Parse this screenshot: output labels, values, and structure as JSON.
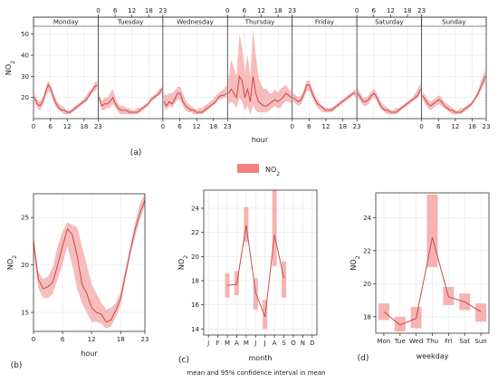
{
  "legend": {
    "label": "NO",
    "sub": "2",
    "color": "#f28080"
  },
  "caption": "mean and 95% confidence interval in mean",
  "chart_data": [
    {
      "id": "a",
      "panel_label": "(a)",
      "type": "area",
      "xlabel": "hour",
      "ylabel": "NO2",
      "ylim": [
        10,
        58
      ],
      "yticks": [
        20,
        30,
        40,
        50
      ],
      "xticks": [
        0,
        6,
        12,
        18,
        23
      ],
      "days": [
        "Monday",
        "Tuesday",
        "Wednesday",
        "Thursday",
        "Friday",
        "Saturday",
        "Sunday"
      ],
      "series": [
        {
          "mean": [
            20,
            17,
            16,
            18,
            22,
            26,
            24,
            20,
            17,
            15,
            14,
            14,
            13,
            13,
            14,
            15,
            16,
            17,
            18,
            19,
            21,
            23,
            25,
            26
          ],
          "lower": [
            18,
            15,
            14,
            16,
            20,
            23,
            22,
            18,
            15,
            14,
            13,
            12,
            12,
            12,
            13,
            14,
            15,
            16,
            17,
            18,
            20,
            22,
            23,
            24
          ],
          "upper": [
            22,
            19,
            18,
            20,
            24,
            28,
            26,
            22,
            19,
            17,
            16,
            15,
            14,
            14,
            15,
            16,
            17,
            18,
            19,
            21,
            23,
            24,
            27,
            28
          ]
        },
        {
          "mean": [
            20,
            16,
            17,
            17,
            18,
            20,
            17,
            15,
            14,
            14,
            14,
            13,
            13,
            13,
            13,
            14,
            15,
            16,
            17,
            19,
            20,
            21,
            22,
            24
          ],
          "lower": [
            18,
            14,
            14,
            15,
            15,
            17,
            15,
            13,
            12,
            12,
            12,
            12,
            12,
            12,
            12,
            13,
            14,
            15,
            16,
            18,
            19,
            20,
            21,
            22
          ],
          "upper": [
            22,
            18,
            20,
            20,
            22,
            24,
            20,
            17,
            16,
            16,
            15,
            15,
            14,
            14,
            15,
            15,
            16,
            17,
            18,
            20,
            21,
            22,
            24,
            25
          ]
        },
        {
          "mean": [
            18,
            16,
            18,
            17,
            19,
            22,
            22,
            18,
            16,
            15,
            14,
            14,
            13,
            13,
            13,
            14,
            15,
            16,
            17,
            18,
            20,
            21,
            21,
            22
          ],
          "lower": [
            16,
            14,
            16,
            15,
            17,
            19,
            19,
            16,
            14,
            13,
            13,
            12,
            12,
            12,
            12,
            13,
            14,
            15,
            16,
            17,
            19,
            19,
            20,
            20
          ],
          "upper": [
            20,
            18,
            21,
            20,
            22,
            25,
            25,
            21,
            18,
            17,
            16,
            15,
            14,
            14,
            15,
            15,
            16,
            17,
            18,
            19,
            21,
            22,
            23,
            24
          ],
          "upper_extra": [
            22,
            21,
            22,
            22,
            23,
            25,
            25,
            22,
            19,
            17,
            16,
            15,
            14,
            15,
            15,
            16,
            17,
            18,
            19,
            21,
            22,
            23,
            24,
            26
          ]
        },
        {
          "mean": [
            22,
            24,
            22,
            20,
            30,
            28,
            20,
            24,
            18,
            30,
            22,
            18,
            17,
            16,
            16,
            17,
            18,
            19,
            18,
            19,
            20,
            22,
            21,
            20
          ],
          "lower": [
            17,
            18,
            17,
            15,
            20,
            18,
            14,
            16,
            12,
            16,
            14,
            13,
            13,
            13,
            13,
            14,
            15,
            16,
            15,
            15,
            17,
            18,
            18,
            17
          ],
          "upper": [
            28,
            38,
            34,
            30,
            50,
            44,
            32,
            40,
            30,
            52,
            40,
            30,
            26,
            24,
            24,
            22,
            22,
            24,
            22,
            24,
            25,
            26,
            24,
            23
          ]
        },
        {
          "mean": [
            20,
            19,
            18,
            19,
            22,
            26,
            26,
            22,
            19,
            17,
            16,
            15,
            14,
            14,
            14,
            15,
            16,
            17,
            18,
            19,
            20,
            21,
            22,
            22
          ],
          "lower": [
            18,
            17,
            16,
            17,
            20,
            23,
            23,
            20,
            17,
            15,
            14,
            13,
            13,
            13,
            13,
            14,
            15,
            16,
            17,
            18,
            19,
            20,
            21,
            20
          ],
          "upper": [
            22,
            21,
            20,
            21,
            24,
            28,
            28,
            24,
            21,
            19,
            17,
            16,
            15,
            15,
            15,
            16,
            17,
            18,
            19,
            20,
            21,
            22,
            23,
            24
          ]
        },
        {
          "mean": [
            22,
            20,
            18,
            18,
            19,
            21,
            22,
            20,
            17,
            15,
            14,
            14,
            13,
            13,
            13,
            14,
            15,
            16,
            17,
            18,
            19,
            20,
            21,
            24
          ],
          "lower": [
            20,
            18,
            16,
            16,
            17,
            19,
            20,
            18,
            15,
            14,
            13,
            12,
            12,
            12,
            12,
            13,
            14,
            15,
            16,
            17,
            18,
            19,
            20,
            22
          ],
          "upper": [
            25,
            22,
            20,
            20,
            21,
            23,
            24,
            22,
            19,
            17,
            16,
            15,
            14,
            14,
            15,
            15,
            16,
            17,
            18,
            19,
            20,
            22,
            24,
            27
          ]
        },
        {
          "mean": [
            21,
            19,
            17,
            16,
            17,
            18,
            19,
            18,
            16,
            15,
            14,
            14,
            13,
            13,
            13,
            14,
            15,
            16,
            17,
            19,
            21,
            24,
            27,
            30
          ],
          "lower": [
            19,
            17,
            15,
            14,
            15,
            16,
            17,
            16,
            15,
            14,
            13,
            12,
            12,
            12,
            12,
            13,
            14,
            15,
            16,
            18,
            20,
            22,
            25,
            27
          ],
          "upper": [
            23,
            21,
            19,
            18,
            19,
            20,
            21,
            20,
            18,
            17,
            16,
            15,
            14,
            14,
            15,
            15,
            16,
            17,
            18,
            20,
            22,
            26,
            30,
            33
          ]
        }
      ]
    },
    {
      "id": "b",
      "panel_label": "(b)",
      "type": "area",
      "xlabel": "hour",
      "ylabel": "NO2",
      "xlim": [
        0,
        23
      ],
      "ylim": [
        13,
        27.5
      ],
      "xticks": [
        0,
        6,
        12,
        18,
        23
      ],
      "yticks": [
        15,
        20,
        25
      ],
      "x": [
        0,
        1,
        2,
        3,
        4,
        5,
        6,
        7,
        8,
        9,
        10,
        11,
        12,
        13,
        14,
        15,
        16,
        17,
        18,
        19,
        20,
        21,
        22,
        23
      ],
      "mean": [
        22.5,
        18.5,
        17.5,
        17.7,
        18.2,
        20,
        22,
        23.8,
        23.2,
        21,
        18,
        17,
        15.5,
        15,
        14.8,
        14,
        14.2,
        15.2,
        16.5,
        19,
        21.5,
        23.8,
        25.5,
        26.8
      ],
      "lower": [
        21.5,
        17.5,
        16.5,
        16.5,
        17,
        18.5,
        20,
        22,
        20,
        17.5,
        16,
        15,
        14,
        14,
        13.8,
        13.3,
        13.5,
        14.5,
        15.8,
        18.5,
        21,
        23,
        24.8,
        26.3
      ],
      "upper": [
        23,
        19.3,
        18.5,
        18.8,
        19.8,
        22,
        23.5,
        24.5,
        24.2,
        24,
        22,
        20,
        18,
        17,
        16,
        15.3,
        15.5,
        16,
        17.2,
        19.6,
        22,
        24.5,
        26.5,
        27.5
      ]
    },
    {
      "id": "c",
      "panel_label": "(c)",
      "type": "line",
      "xlabel": "month",
      "ylabel": "NO2",
      "ylim": [
        13.5,
        25.5
      ],
      "yticks": [
        14,
        16,
        18,
        20,
        22,
        24
      ],
      "categories": [
        "J",
        "F",
        "M",
        "A",
        "M",
        "J",
        "J",
        "A",
        "S",
        "O",
        "N",
        "D"
      ],
      "mean": [
        null,
        null,
        17.6,
        17.7,
        22.6,
        17,
        15,
        21.8,
        18.2,
        null,
        null,
        null
      ],
      "lower": [
        null,
        null,
        16.6,
        16.8,
        21.2,
        15.6,
        14,
        19.2,
        16.6,
        null,
        null,
        null
      ],
      "upper": [
        null,
        null,
        18.6,
        18.8,
        24.1,
        18.2,
        16.4,
        25.5,
        19.6,
        null,
        null,
        null
      ]
    },
    {
      "id": "d",
      "panel_label": "(d)",
      "type": "line",
      "xlabel": "weekday",
      "ylabel": "NO2",
      "ylim": [
        17,
        25.5
      ],
      "yticks": [
        18,
        20,
        22,
        24
      ],
      "categories": [
        "Mon",
        "Tue",
        "Wed",
        "Thu",
        "Fri",
        "Sat",
        "Sun"
      ],
      "mean": [
        18.3,
        17.5,
        17.9,
        22.8,
        19.2,
        18.9,
        18.3
      ],
      "lower": [
        17.8,
        17.1,
        17.3,
        21,
        18.7,
        18.4,
        17.7
      ],
      "upper": [
        18.8,
        18,
        18.6,
        25.4,
        19.8,
        19.4,
        18.8
      ]
    }
  ]
}
